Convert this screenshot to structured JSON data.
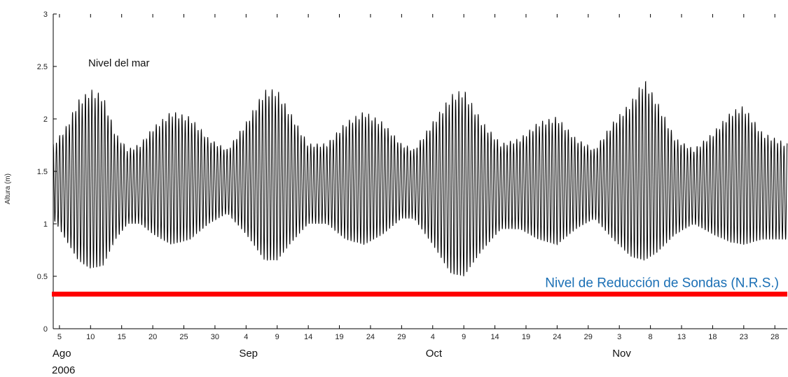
{
  "chart_data": {
    "type": "line",
    "title": "Nivel del mar",
    "xlabel": "",
    "ylabel": "Altura (m)",
    "ylim": [
      0,
      3
    ],
    "xlim": [
      "2006-08-04",
      "2006-11-30"
    ],
    "grid": false,
    "y_ticks": [
      "0",
      "0.5",
      "1",
      "1.5",
      "2",
      "2.5",
      "3"
    ],
    "x_ticks": [
      {
        "label": "5",
        "date": "2006-08-05"
      },
      {
        "label": "10",
        "date": "2006-08-10"
      },
      {
        "label": "15",
        "date": "2006-08-15"
      },
      {
        "label": "20",
        "date": "2006-08-20"
      },
      {
        "label": "25",
        "date": "2006-08-25"
      },
      {
        "label": "30",
        "date": "2006-08-30"
      },
      {
        "label": "4",
        "date": "2006-09-04"
      },
      {
        "label": "9",
        "date": "2006-09-09"
      },
      {
        "label": "14",
        "date": "2006-09-14"
      },
      {
        "label": "19",
        "date": "2006-09-19"
      },
      {
        "label": "24",
        "date": "2006-09-24"
      },
      {
        "label": "29",
        "date": "2006-09-29"
      },
      {
        "label": "4",
        "date": "2006-10-04"
      },
      {
        "label": "9",
        "date": "2006-10-09"
      },
      {
        "label": "14",
        "date": "2006-10-14"
      },
      {
        "label": "19",
        "date": "2006-10-19"
      },
      {
        "label": "24",
        "date": "2006-10-24"
      },
      {
        "label": "29",
        "date": "2006-10-29"
      },
      {
        "label": "3",
        "date": "2006-11-03"
      },
      {
        "label": "8",
        "date": "2006-11-08"
      },
      {
        "label": "13",
        "date": "2006-11-13"
      },
      {
        "label": "18",
        "date": "2006-11-18"
      },
      {
        "label": "23",
        "date": "2006-11-23"
      },
      {
        "label": "28",
        "date": "2006-11-28"
      }
    ],
    "month_labels": [
      {
        "label": "Ago",
        "date": "2006-08-05"
      },
      {
        "label": "Sep",
        "date": "2006-09-04"
      },
      {
        "label": "Oct",
        "date": "2006-10-04"
      },
      {
        "label": "Nov",
        "date": "2006-11-03"
      }
    ],
    "year_label": "2006",
    "series": [
      {
        "color": "#000000",
        "sampling": "semidiurnal tide, high and low water envelope",
        "high_water": [
          {
            "x": "2006-08-04",
            "y": 1.75
          },
          {
            "x": "2006-08-06",
            "y": 1.9
          },
          {
            "x": "2006-08-08",
            "y": 2.15
          },
          {
            "x": "2006-08-10",
            "y": 2.25
          },
          {
            "x": "2006-08-12",
            "y": 2.2
          },
          {
            "x": "2006-08-14",
            "y": 1.85
          },
          {
            "x": "2006-08-16",
            "y": 1.7
          },
          {
            "x": "2006-08-18",
            "y": 1.75
          },
          {
            "x": "2006-08-20",
            "y": 1.9
          },
          {
            "x": "2006-08-23",
            "y": 2.05
          },
          {
            "x": "2006-08-26",
            "y": 2.0
          },
          {
            "x": "2006-08-29",
            "y": 1.8
          },
          {
            "x": "2006-09-01",
            "y": 1.7
          },
          {
            "x": "2006-09-04",
            "y": 1.95
          },
          {
            "x": "2006-09-07",
            "y": 2.25
          },
          {
            "x": "2006-09-09",
            "y": 2.25
          },
          {
            "x": "2006-09-11",
            "y": 2.05
          },
          {
            "x": "2006-09-14",
            "y": 1.75
          },
          {
            "x": "2006-09-17",
            "y": 1.75
          },
          {
            "x": "2006-09-20",
            "y": 1.95
          },
          {
            "x": "2006-09-23",
            "y": 2.05
          },
          {
            "x": "2006-09-26",
            "y": 1.95
          },
          {
            "x": "2006-09-29",
            "y": 1.75
          },
          {
            "x": "2006-10-01",
            "y": 1.7
          },
          {
            "x": "2006-10-04",
            "y": 1.95
          },
          {
            "x": "2006-10-07",
            "y": 2.2
          },
          {
            "x": "2006-10-09",
            "y": 2.25
          },
          {
            "x": "2006-10-12",
            "y": 1.95
          },
          {
            "x": "2006-10-15",
            "y": 1.75
          },
          {
            "x": "2006-10-18",
            "y": 1.8
          },
          {
            "x": "2006-10-21",
            "y": 1.95
          },
          {
            "x": "2006-10-24",
            "y": 2.0
          },
          {
            "x": "2006-10-27",
            "y": 1.8
          },
          {
            "x": "2006-10-30",
            "y": 1.7
          },
          {
            "x": "2006-11-02",
            "y": 1.95
          },
          {
            "x": "2006-11-05",
            "y": 2.15
          },
          {
            "x": "2006-11-07",
            "y": 2.35
          },
          {
            "x": "2006-11-09",
            "y": 2.15
          },
          {
            "x": "2006-11-12",
            "y": 1.8
          },
          {
            "x": "2006-11-15",
            "y": 1.7
          },
          {
            "x": "2006-11-18",
            "y": 1.85
          },
          {
            "x": "2006-11-21",
            "y": 2.05
          },
          {
            "x": "2006-11-23",
            "y": 2.1
          },
          {
            "x": "2006-11-26",
            "y": 1.85
          },
          {
            "x": "2006-11-30",
            "y": 1.75
          }
        ],
        "low_water": [
          {
            "x": "2006-08-04",
            "y": 1.05
          },
          {
            "x": "2006-08-06",
            "y": 0.85
          },
          {
            "x": "2006-08-08",
            "y": 0.65
          },
          {
            "x": "2006-08-10",
            "y": 0.57
          },
          {
            "x": "2006-08-12",
            "y": 0.6
          },
          {
            "x": "2006-08-14",
            "y": 0.85
          },
          {
            "x": "2006-08-16",
            "y": 1.0
          },
          {
            "x": "2006-08-18",
            "y": 1.0
          },
          {
            "x": "2006-08-20",
            "y": 0.9
          },
          {
            "x": "2006-08-23",
            "y": 0.8
          },
          {
            "x": "2006-08-26",
            "y": 0.85
          },
          {
            "x": "2006-08-29",
            "y": 1.0
          },
          {
            "x": "2006-09-01",
            "y": 1.1
          },
          {
            "x": "2006-09-04",
            "y": 0.9
          },
          {
            "x": "2006-09-07",
            "y": 0.65
          },
          {
            "x": "2006-09-09",
            "y": 0.65
          },
          {
            "x": "2006-09-11",
            "y": 0.8
          },
          {
            "x": "2006-09-14",
            "y": 1.0
          },
          {
            "x": "2006-09-17",
            "y": 1.0
          },
          {
            "x": "2006-09-20",
            "y": 0.85
          },
          {
            "x": "2006-09-23",
            "y": 0.8
          },
          {
            "x": "2006-09-26",
            "y": 0.9
          },
          {
            "x": "2006-09-29",
            "y": 1.05
          },
          {
            "x": "2006-10-01",
            "y": 1.05
          },
          {
            "x": "2006-10-04",
            "y": 0.8
          },
          {
            "x": "2006-10-07",
            "y": 0.52
          },
          {
            "x": "2006-10-09",
            "y": 0.5
          },
          {
            "x": "2006-10-12",
            "y": 0.75
          },
          {
            "x": "2006-10-15",
            "y": 0.95
          },
          {
            "x": "2006-10-18",
            "y": 0.95
          },
          {
            "x": "2006-10-21",
            "y": 0.85
          },
          {
            "x": "2006-10-24",
            "y": 0.8
          },
          {
            "x": "2006-10-27",
            "y": 0.95
          },
          {
            "x": "2006-10-30",
            "y": 1.05
          },
          {
            "x": "2006-11-02",
            "y": 0.85
          },
          {
            "x": "2006-11-05",
            "y": 0.68
          },
          {
            "x": "2006-11-07",
            "y": 0.65
          },
          {
            "x": "2006-11-09",
            "y": 0.72
          },
          {
            "x": "2006-11-12",
            "y": 0.9
          },
          {
            "x": "2006-11-15",
            "y": 1.0
          },
          {
            "x": "2006-11-18",
            "y": 0.9
          },
          {
            "x": "2006-11-21",
            "y": 0.82
          },
          {
            "x": "2006-11-23",
            "y": 0.8
          },
          {
            "x": "2006-11-26",
            "y": 0.85
          },
          {
            "x": "2006-11-30",
            "y": 0.85
          }
        ]
      }
    ],
    "reference_line": {
      "label": "Nivel de Reducción de Sondas (N.R.S.)",
      "y": 0.33,
      "color": "#ff0000",
      "label_color": "#1a6fb5"
    }
  }
}
